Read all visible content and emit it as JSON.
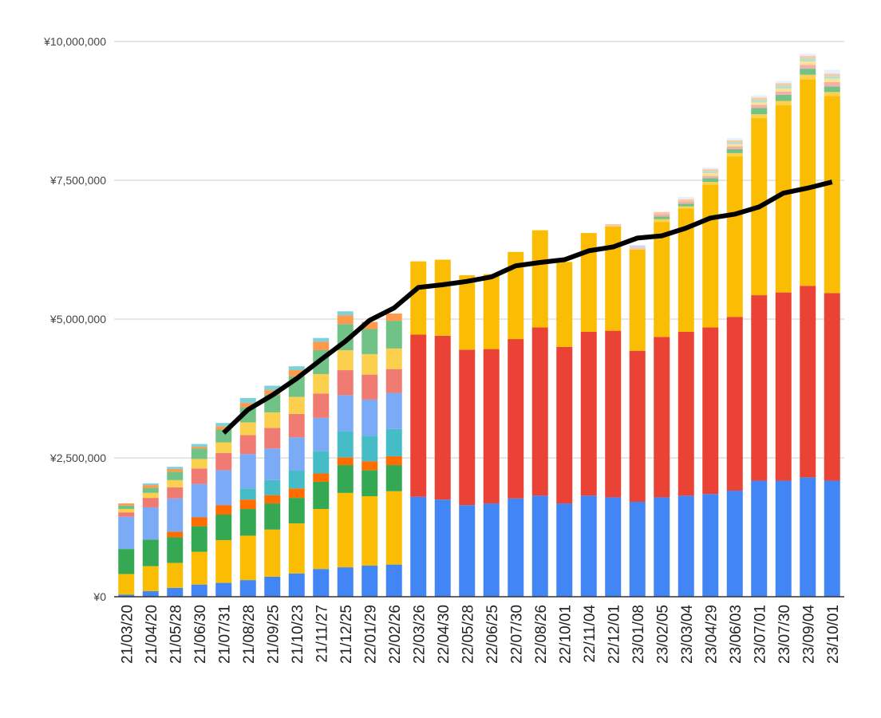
{
  "chart_data": {
    "type": "bar",
    "stacked": true,
    "title": "",
    "xlabel": "",
    "ylabel": "",
    "ylim": [
      0,
      10000000
    ],
    "yticks": [
      {
        "value": 0,
        "label": "¥0"
      },
      {
        "value": 2500000,
        "label": "¥2,500,000"
      },
      {
        "value": 5000000,
        "label": "¥5,000,000"
      },
      {
        "value": 7500000,
        "label": "¥7,500,000"
      },
      {
        "value": 10000000,
        "label": "¥10,000,000"
      }
    ],
    "grid": true,
    "legend": "none",
    "categories": [
      "21/03/20",
      "21/04/20",
      "21/05/28",
      "21/06/30",
      "21/07/31",
      "21/08/28",
      "21/09/25",
      "21/10/23",
      "21/11/27",
      "21/12/25",
      "22/01/29",
      "22/02/26",
      "22/03/26",
      "22/04/30",
      "22/05/28",
      "22/06/25",
      "22/07/30",
      "22/08/26",
      "22/10/01",
      "22/11/04",
      "22/12/01",
      "23/01/08",
      "23/02/05",
      "23/03/04",
      "23/04/29",
      "23/06/03",
      "23/07/01",
      "23/07/30",
      "23/09/04",
      "23/10/01"
    ],
    "series": [
      {
        "color": "#4285f4",
        "values": [
          40000,
          100000,
          160000,
          220000,
          250000,
          300000,
          360000,
          420000,
          500000,
          530000,
          560000,
          580000,
          1800000,
          1750000,
          1650000,
          1680000,
          1770000,
          1820000,
          1680000,
          1820000,
          1790000,
          1710000,
          1790000,
          1820000,
          1850000,
          1910000,
          2090000,
          2090000,
          2150000,
          2090000
        ]
      },
      {
        "color": "#ea4335",
        "values": [
          0,
          0,
          0,
          0,
          0,
          0,
          0,
          0,
          0,
          0,
          0,
          0,
          2920000,
          2950000,
          2800000,
          2780000,
          2870000,
          3030000,
          2820000,
          2950000,
          3000000,
          2720000,
          2890000,
          2950000,
          3000000,
          3130000,
          3340000,
          3390000,
          3450000,
          3380000
        ]
      },
      {
        "color": "#fbbc04",
        "values": [
          370000,
          450000,
          450000,
          590000,
          770000,
          800000,
          850000,
          900000,
          1080000,
          1340000,
          1250000,
          1320000,
          1320000,
          1370000,
          1340000,
          1350000,
          1570000,
          1750000,
          1530000,
          1780000,
          1880000,
          1820000,
          2070000,
          2220000,
          2570000,
          2890000,
          3190000,
          3370000,
          3720000,
          3550000
        ]
      },
      {
        "color": "#34a853",
        "values": [
          450000,
          480000,
          460000,
          460000,
          460000,
          480000,
          470000,
          460000,
          490000,
          500000,
          470000,
          470000,
          0,
          0,
          0,
          0,
          0,
          0,
          0,
          0,
          0,
          0,
          0,
          0,
          0,
          0,
          0,
          0,
          0,
          0
        ]
      },
      {
        "color": "#ff6d01",
        "values": [
          0,
          0,
          100000,
          160000,
          170000,
          170000,
          150000,
          170000,
          150000,
          140000,
          160000,
          160000,
          0,
          0,
          0,
          0,
          0,
          0,
          0,
          0,
          0,
          0,
          0,
          0,
          0,
          0,
          0,
          0,
          0,
          0
        ]
      },
      {
        "color": "#46bdc6",
        "values": [
          0,
          0,
          0,
          0,
          0,
          200000,
          270000,
          320000,
          400000,
          470000,
          460000,
          490000,
          0,
          0,
          0,
          0,
          0,
          0,
          0,
          0,
          0,
          0,
          0,
          0,
          0,
          0,
          0,
          0,
          0,
          0
        ]
      },
      {
        "color": "#7baaf7",
        "values": [
          580000,
          580000,
          600000,
          600000,
          630000,
          620000,
          570000,
          600000,
          600000,
          650000,
          650000,
          650000,
          0,
          0,
          0,
          0,
          0,
          0,
          0,
          0,
          0,
          0,
          0,
          0,
          0,
          0,
          0,
          0,
          0,
          0
        ]
      },
      {
        "color": "#f07b72",
        "values": [
          80000,
          170000,
          200000,
          280000,
          310000,
          340000,
          370000,
          420000,
          440000,
          450000,
          450000,
          430000,
          0,
          0,
          0,
          0,
          0,
          0,
          0,
          0,
          0,
          0,
          0,
          0,
          0,
          0,
          0,
          0,
          0,
          0
        ]
      },
      {
        "color": "#fcd04f",
        "values": [
          60000,
          90000,
          130000,
          170000,
          190000,
          230000,
          280000,
          310000,
          350000,
          360000,
          370000,
          370000,
          0,
          0,
          0,
          0,
          0,
          0,
          0,
          0,
          0,
          0,
          50000,
          40000,
          50000,
          60000,
          70000,
          80000,
          80000,
          70000
        ]
      },
      {
        "color": "#71c287",
        "values": [
          60000,
          90000,
          150000,
          190000,
          230000,
          270000,
          320000,
          370000,
          430000,
          470000,
          450000,
          500000,
          0,
          0,
          0,
          0,
          0,
          0,
          0,
          0,
          0,
          0,
          50000,
          50000,
          70000,
          70000,
          110000,
          110000,
          110000,
          100000
        ]
      },
      {
        "color": "#ff994d",
        "values": [
          40000,
          50000,
          50000,
          30000,
          60000,
          80000,
          80000,
          110000,
          150000,
          160000,
          130000,
          130000,
          0,
          0,
          0,
          0,
          0,
          0,
          0,
          0,
          0,
          0,
          0,
          0,
          0,
          0,
          0,
          0,
          0,
          0
        ]
      },
      {
        "color": "#7ed1d7",
        "values": [
          0,
          30000,
          40000,
          50000,
          60000,
          90000,
          80000,
          70000,
          70000,
          70000,
          0,
          0,
          0,
          0,
          0,
          0,
          0,
          0,
          0,
          0,
          0,
          0,
          0,
          0,
          0,
          0,
          0,
          0,
          0,
          0
        ]
      },
      {
        "color": "#f6aea9",
        "values": [
          0,
          0,
          0,
          0,
          0,
          0,
          0,
          0,
          0,
          0,
          0,
          0,
          0,
          0,
          0,
          0,
          0,
          0,
          0,
          0,
          0,
          0,
          40000,
          40000,
          40000,
          50000,
          60000,
          60000,
          70000,
          80000
        ]
      },
      {
        "color": "#fde293",
        "values": [
          0,
          0,
          0,
          0,
          0,
          0,
          0,
          0,
          0,
          0,
          0,
          0,
          0,
          0,
          0,
          0,
          0,
          0,
          0,
          0,
          0,
          0,
          0,
          0,
          50000,
          40000,
          40000,
          50000,
          60000,
          60000
        ]
      },
      {
        "color": "#b7e1cd",
        "values": [
          0,
          0,
          0,
          0,
          0,
          0,
          0,
          0,
          0,
          0,
          0,
          0,
          0,
          0,
          0,
          0,
          0,
          0,
          0,
          0,
          0,
          0,
          0,
          0,
          40000,
          40000,
          50000,
          60000,
          60000,
          50000
        ]
      },
      {
        "color": "#fbc8a0",
        "values": [
          0,
          0,
          0,
          0,
          0,
          0,
          0,
          0,
          0,
          0,
          0,
          0,
          0,
          0,
          0,
          0,
          0,
          0,
          0,
          0,
          40000,
          40000,
          40000,
          40000,
          30000,
          30000,
          40000,
          40000,
          40000,
          40000
        ]
      },
      {
        "color": "#c6dafc",
        "values": [
          0,
          0,
          0,
          0,
          0,
          0,
          0,
          0,
          0,
          0,
          0,
          0,
          0,
          0,
          0,
          0,
          0,
          0,
          0,
          0,
          0,
          40000,
          0,
          0,
          0,
          0,
          0,
          0,
          0,
          0
        ]
      },
      {
        "color": "#e8f0fe",
        "values": [
          0,
          0,
          0,
          0,
          0,
          0,
          0,
          0,
          0,
          0,
          0,
          0,
          0,
          0,
          0,
          0,
          0,
          0,
          0,
          0,
          0,
          0,
          0,
          40000,
          30000,
          40000,
          40000,
          40000,
          40000,
          70000
        ]
      }
    ],
    "line": {
      "color": "#000000",
      "values": [
        null,
        null,
        null,
        null,
        2950000,
        3370000,
        3630000,
        3930000,
        4270000,
        4600000,
        4980000,
        5200000,
        5570000,
        5620000,
        5680000,
        5760000,
        5960000,
        6020000,
        6070000,
        6230000,
        6300000,
        6460000,
        6500000,
        6640000,
        6820000,
        6890000,
        7020000,
        7270000,
        7360000,
        7470000
      ]
    }
  }
}
